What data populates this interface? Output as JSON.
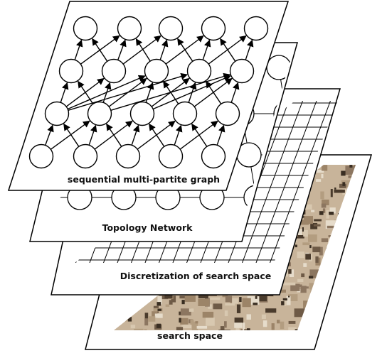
{
  "layers": [
    {
      "id": "search-space",
      "label": "search space"
    },
    {
      "id": "discretization",
      "label": "Discretization of search space"
    },
    {
      "id": "topology",
      "label": "Topology Network"
    },
    {
      "id": "graph",
      "label": "sequential multi-partite graph"
    }
  ],
  "colors": {
    "stroke": "#000000",
    "fill": "#ffffff",
    "terrain_light": "#c8b49a",
    "terrain_dark": "#3a2e22"
  }
}
